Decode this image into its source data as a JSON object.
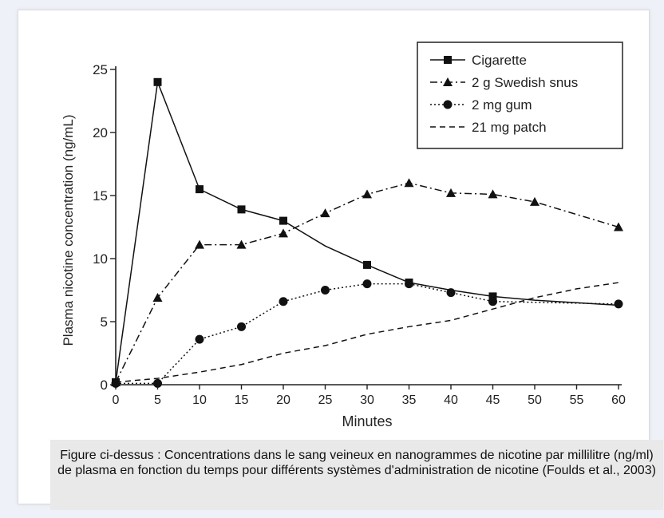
{
  "chart_data": {
    "type": "line",
    "xlabel": "Minutes",
    "ylabel": "Plasma nicotine concentration (ng/mL)",
    "xlim": [
      0,
      60
    ],
    "ylim": [
      0,
      25
    ],
    "x_ticks": [
      0,
      5,
      10,
      15,
      20,
      25,
      30,
      35,
      40,
      45,
      50,
      55,
      60
    ],
    "y_ticks": [
      0,
      5,
      10,
      15,
      20,
      25
    ],
    "grid": false,
    "legend_position": "top-right",
    "series": [
      {
        "name": "Cigarette",
        "line_style": "solid",
        "marker": "square",
        "x": [
          0,
          5,
          10,
          15,
          20,
          25,
          30,
          35,
          40,
          45,
          50,
          55,
          60
        ],
        "values": [
          0.2,
          24.0,
          15.5,
          13.9,
          13.0,
          11.0,
          9.5,
          8.1,
          7.5,
          7.0,
          6.7,
          6.5,
          6.3
        ],
        "marker_x": [
          0,
          5,
          10,
          15,
          20,
          30,
          35,
          45
        ]
      },
      {
        "name": "2 g  Swedish snus",
        "line_style": "dashdot",
        "marker": "triangle",
        "x": [
          0,
          5,
          10,
          15,
          20,
          25,
          30,
          35,
          40,
          45,
          50,
          60
        ],
        "values": [
          0.2,
          6.9,
          11.1,
          11.1,
          12.0,
          13.6,
          15.1,
          16.0,
          15.2,
          15.1,
          14.5,
          12.5
        ],
        "marker_x": [
          0,
          5,
          10,
          15,
          20,
          25,
          30,
          35,
          40,
          45,
          50,
          60
        ]
      },
      {
        "name": "2 mg  gum",
        "line_style": "dotted",
        "marker": "circle",
        "x": [
          0,
          5,
          10,
          15,
          20,
          25,
          30,
          35,
          40,
          45,
          60
        ],
        "values": [
          0.1,
          0.1,
          3.6,
          4.6,
          6.6,
          7.5,
          8.0,
          8.0,
          7.3,
          6.6,
          6.4
        ],
        "marker_x": [
          0,
          5,
          10,
          15,
          20,
          25,
          30,
          35,
          40,
          45,
          60
        ]
      },
      {
        "name": "21 mg  patch",
        "line_style": "dashed",
        "marker": "none",
        "x": [
          0,
          5,
          10,
          15,
          20,
          25,
          30,
          35,
          40,
          45,
          50,
          55,
          60
        ],
        "values": [
          0.2,
          0.5,
          1.0,
          1.6,
          2.5,
          3.1,
          4.0,
          4.6,
          5.1,
          6.0,
          6.9,
          7.6,
          8.1
        ],
        "marker_x": []
      }
    ]
  },
  "caption": "Figure ci-dessus : Concentrations dans le sang veineux en nanogrammes de nicotine  par millilitre  (ng/ml) de plasma en fonction du temps pour différents systèmes d'administration de nicotine (Foulds et al., 2003)"
}
